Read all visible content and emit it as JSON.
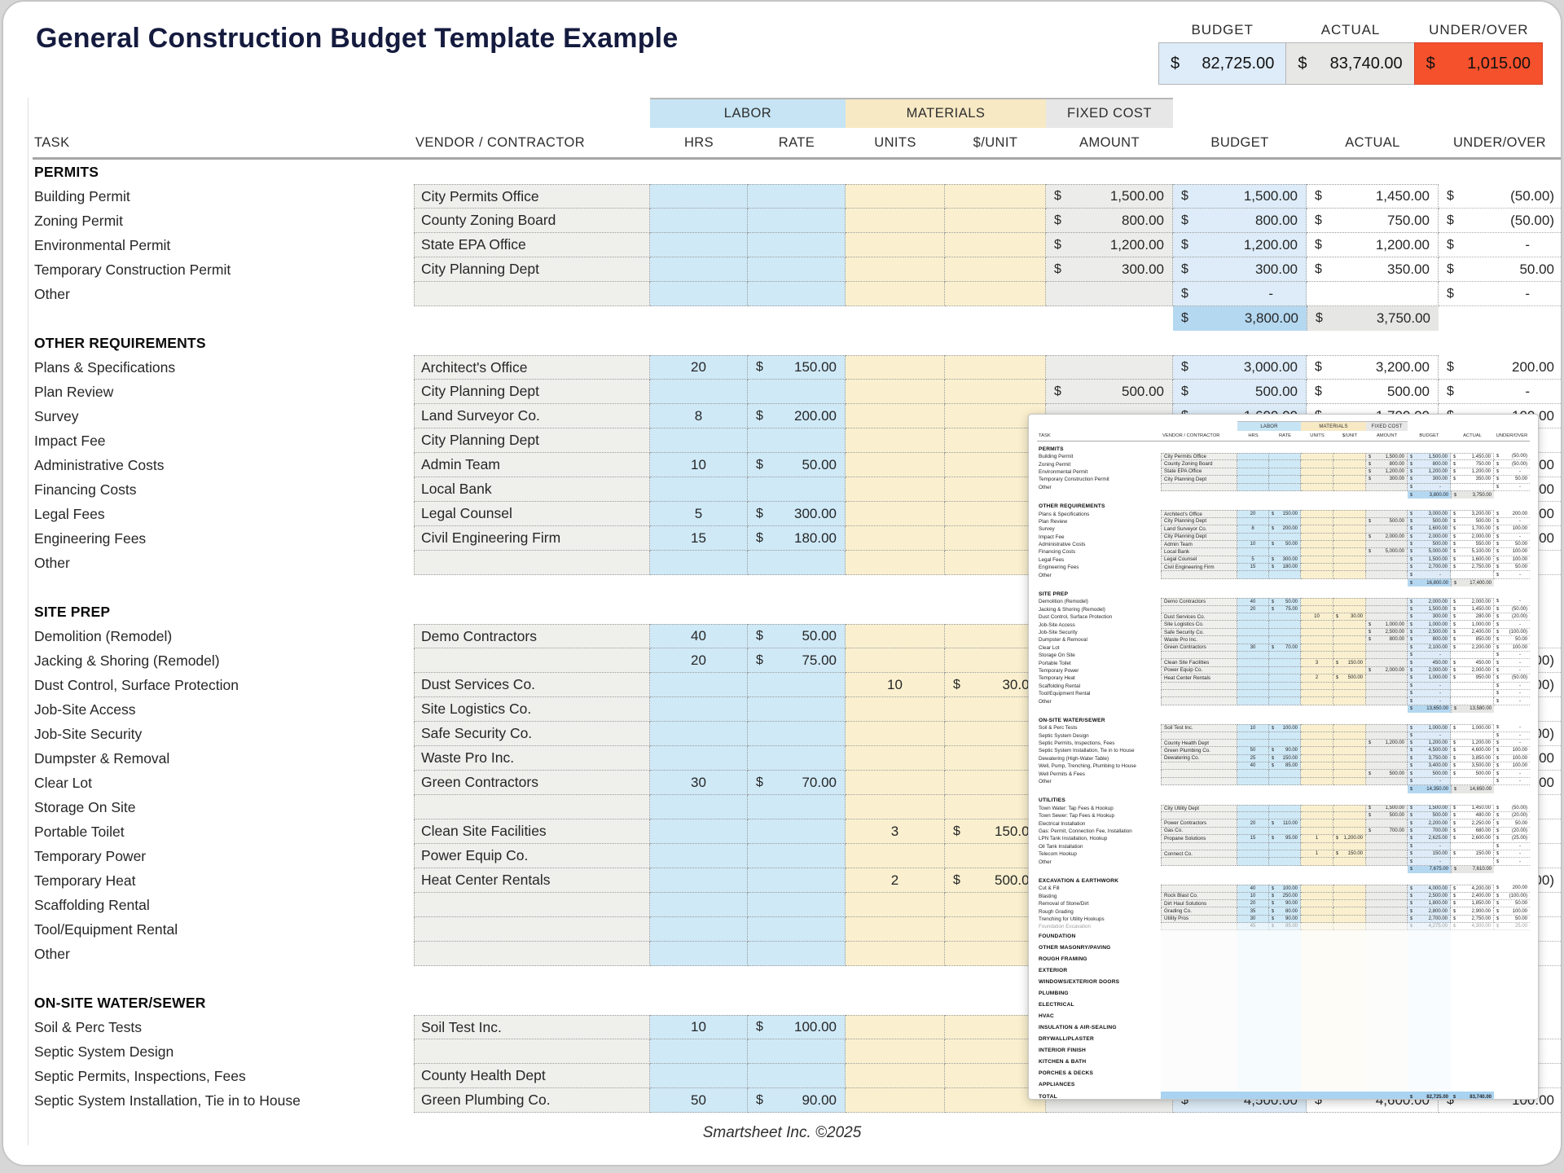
{
  "page": {
    "title": "General Construction Budget Template Example",
    "footer": "Smartsheet Inc. ©2025"
  },
  "summary": {
    "labels": [
      "BUDGET",
      "ACTUAL",
      "UNDER/OVER"
    ],
    "budget": "82,725.00",
    "actual": "83,740.00",
    "under_over": "1,015.00"
  },
  "colors": {
    "labor_band_blue": "#c6e4f4",
    "labor_cell_blue": "#cfe9f7",
    "materials_band_yellow": "#f7e9c4",
    "materials_cell_yellow": "#faf0cf",
    "fixed_cost_gray": "#e7e7e7",
    "budget_cell_blue": "#ddecf8",
    "subtotal_blue": "#b5d8f1",
    "under_over_orange": "#f4512c",
    "title_navy": "#141b3e"
  },
  "table": {
    "group_headers": {
      "labor": "LABOR",
      "materials": "MATERIALS",
      "fixed_cost": "FIXED COST"
    },
    "columns": [
      "TASK",
      "VENDOR / CONTRACTOR",
      "HRS",
      "RATE",
      "UNITS",
      "$/UNIT",
      "AMOUNT",
      "BUDGET",
      "ACTUAL",
      "UNDER/OVER"
    ],
    "sections": [
      {
        "name": "PERMITS",
        "rows": [
          [
            "Building Permit",
            "City Permits Office",
            "",
            "",
            "",
            "",
            "1,500.00",
            "1,500.00",
            "1,450.00",
            "(50.00)"
          ],
          [
            "Zoning Permit",
            "County Zoning Board",
            "",
            "",
            "",
            "",
            "800.00",
            "800.00",
            "750.00",
            "(50.00)"
          ],
          [
            "Environmental Permit",
            "State EPA Office",
            "",
            "",
            "",
            "",
            "1,200.00",
            "1,200.00",
            "1,200.00",
            "-"
          ],
          [
            "Temporary Construction Permit",
            "City Planning Dept",
            "",
            "",
            "",
            "",
            "300.00",
            "300.00",
            "350.00",
            "50.00"
          ],
          [
            "Other",
            "",
            "",
            "",
            "",
            "",
            "",
            "-",
            "",
            "-"
          ]
        ],
        "subtotal": [
          "3,800.00",
          "3,750.00"
        ]
      },
      {
        "name": "OTHER REQUIREMENTS",
        "rows": [
          [
            "Plans & Specifications",
            "Architect's Office",
            "20",
            "150.00",
            "",
            "",
            "",
            "3,000.00",
            "3,200.00",
            "200.00"
          ],
          [
            "Plan Review",
            "City Planning Dept",
            "",
            "",
            "",
            "",
            "500.00",
            "500.00",
            "500.00",
            "-"
          ],
          [
            "Survey",
            "Land Surveyor Co.",
            "8",
            "200.00",
            "",
            "",
            "",
            "1,600.00",
            "1,700.00",
            "100.00"
          ],
          [
            "Impact Fee",
            "City Planning Dept",
            "",
            "",
            "",
            "",
            "2,000.00",
            "2,000.00",
            "2,000.00",
            "-"
          ],
          [
            "Administrative Costs",
            "Admin Team",
            "10",
            "50.00",
            "",
            "",
            "",
            "500.00",
            "550.00",
            "50.00"
          ],
          [
            "Financing Costs",
            "Local Bank",
            "",
            "",
            "",
            "",
            "5,000.00",
            "5,000.00",
            "5,100.00",
            "100.00"
          ],
          [
            "Legal Fees",
            "Legal Counsel",
            "5",
            "300.00",
            "",
            "",
            "",
            "1,500.00",
            "1,600.00",
            "100.00"
          ],
          [
            "Engineering Fees",
            "Civil Engineering Firm",
            "15",
            "180.00",
            "",
            "",
            "",
            "2,700.00",
            "2,750.00",
            "50.00"
          ],
          [
            "Other",
            "",
            "",
            "",
            "",
            "",
            "",
            "-",
            "",
            "-"
          ]
        ],
        "subtotal": [
          "16,800.00",
          "17,400.00"
        ]
      },
      {
        "name": "SITE PREP",
        "rows": [
          [
            "Demolition (Remodel)",
            "Demo Contractors",
            "40",
            "50.00",
            "",
            "",
            "",
            "2,000.00",
            "2,000.00",
            "-"
          ],
          [
            "Jacking & Shoring (Remodel)",
            "",
            "20",
            "75.00",
            "",
            "",
            "",
            "1,500.00",
            "1,450.00",
            "(50.00)"
          ],
          [
            "Dust Control, Surface Protection",
            "Dust Services Co.",
            "",
            "",
            "10",
            "30.00",
            "",
            "300.00",
            "280.00",
            "(20.00)"
          ],
          [
            "Job-Site Access",
            "Site Logistics Co.",
            "",
            "",
            "",
            "",
            "1,000.00",
            "1,000.00",
            "1,000.00",
            "-"
          ],
          [
            "Job-Site Security",
            "Safe Security Co.",
            "",
            "",
            "",
            "",
            "2,500.00",
            "2,500.00",
            "2,400.00",
            "(100.00)"
          ],
          [
            "Dumpster & Removal",
            "Waste Pro Inc.",
            "",
            "",
            "",
            "",
            "800.00",
            "800.00",
            "850.00",
            "50.00"
          ],
          [
            "Clear Lot",
            "Green Contractors",
            "30",
            "70.00",
            "",
            "",
            "",
            "2,100.00",
            "2,200.00",
            "100.00"
          ],
          [
            "Storage On Site",
            "",
            "",
            "",
            "",
            "",
            "",
            "-",
            "",
            "-"
          ],
          [
            "Portable Toilet",
            "Clean Site Facilities",
            "",
            "",
            "3",
            "150.00",
            "",
            "450.00",
            "450.00",
            "-"
          ],
          [
            "Temporary Power",
            "Power Equip Co.",
            "",
            "",
            "",
            "",
            "2,000.00",
            "2,000.00",
            "2,000.00",
            "-"
          ],
          [
            "Temporary Heat",
            "Heat Center Rentals",
            "",
            "",
            "2",
            "500.00",
            "",
            "1,000.00",
            "950.00",
            "(50.00)"
          ],
          [
            "Scaffolding Rental",
            "",
            "",
            "",
            "",
            "",
            "",
            "-",
            "",
            "-"
          ],
          [
            "Tool/Equipment Rental",
            "",
            "",
            "",
            "",
            "",
            "",
            "-",
            "",
            "-"
          ],
          [
            "Other",
            "",
            "",
            "",
            "",
            "",
            "",
            "-",
            "",
            "-"
          ]
        ],
        "subtotal": [
          "13,650.00",
          "13,580.00"
        ]
      },
      {
        "name": "ON-SITE WATER/SEWER",
        "rows": [
          [
            "Soil & Perc Tests",
            "Soil Test Inc.",
            "10",
            "100.00",
            "",
            "",
            "",
            "1,000.00",
            "1,000.00",
            "-"
          ],
          [
            "Septic System Design",
            "",
            "",
            "",
            "",
            "",
            "",
            "-",
            "",
            "-"
          ],
          [
            "Septic Permits, Inspections, Fees",
            "County Health Dept",
            "",
            "",
            "",
            "",
            "1,200.00",
            "1,200.00",
            "1,200.00",
            "-"
          ],
          [
            "Septic System Installation, Tie in to House",
            "Green Plumbing Co.",
            "50",
            "90.00",
            "",
            "",
            "",
            "4,500.00",
            "4,600.00",
            "100.00"
          ],
          [
            "Dewatering (High-Water Table)",
            "Dewatering Co.",
            "25",
            "150.00",
            "",
            "",
            "",
            "3,750.00",
            "3,850.00",
            "100.00"
          ],
          [
            "Well, Pump, Trenching, Plumbing to House",
            "",
            "40",
            "85.00",
            "",
            "",
            "",
            "3,400.00",
            "3,500.00",
            "100.00"
          ],
          [
            "Well Permits & Fees",
            "",
            "",
            "",
            "",
            "",
            "500.00",
            "500.00",
            "500.00",
            "-"
          ],
          [
            "Other",
            "",
            "",
            "",
            "",
            "",
            "",
            "-",
            "",
            "-"
          ]
        ],
        "subtotal": [
          "14,350.00",
          "14,650.00"
        ]
      },
      {
        "name": "UTILITIES",
        "rows": [
          [
            "Town Water: Tap Fees & Hookup",
            "City Utility Dept",
            "",
            "",
            "",
            "",
            "1,500.00",
            "1,500.00",
            "1,450.00",
            "(50.00)"
          ],
          [
            "Town Sewer: Tap Fees & Hookup",
            "",
            "",
            "",
            "",
            "",
            "500.00",
            "500.00",
            "480.00",
            "(20.00)"
          ],
          [
            "Electrical Installation",
            "Power Contractors",
            "20",
            "110.00",
            "",
            "",
            "",
            "2,200.00",
            "2,250.00",
            "50.00"
          ],
          [
            "Gas: Permit, Connection Fee, Installation",
            "Gas Co.",
            "",
            "",
            "",
            "",
            "700.00",
            "700.00",
            "680.00",
            "(20.00)"
          ],
          [
            "LPN Tank Installation, Hookup",
            "Propane Solutions",
            "15",
            "95.00",
            "1",
            "1,200.00",
            "",
            "2,625.00",
            "2,600.00",
            "(25.00)"
          ],
          [
            "Oil Tank Installation",
            "",
            "",
            "",
            "",
            "",
            "",
            "-",
            "",
            "-"
          ],
          [
            "Telecom Hookup",
            "Connect Co.",
            "",
            "",
            "1",
            "150.00",
            "",
            "150.00",
            "150.00",
            "-"
          ],
          [
            "Other",
            "",
            "",
            "",
            "",
            "",
            "",
            "-",
            "",
            "-"
          ]
        ],
        "subtotal": [
          "7,675.00",
          "7,610.00"
        ]
      },
      {
        "name": "EXCAVATION & EARTHWORK",
        "rows": [
          [
            "Cut & Fill",
            "",
            "40",
            "100.00",
            "",
            "",
            "",
            "4,000.00",
            "4,200.00",
            "200.00"
          ],
          [
            "Blasting",
            "Rock Blast Co.",
            "10",
            "250.00",
            "",
            "",
            "",
            "2,500.00",
            "2,400.00",
            "(100.00)"
          ],
          [
            "Removal of Stone/Dirt",
            "Dirt Haul Solutions",
            "20",
            "90.00",
            "",
            "",
            "",
            "1,800.00",
            "1,850.00",
            "50.00"
          ],
          [
            "Rough Grading",
            "Grading Co.",
            "35",
            "80.00",
            "",
            "",
            "",
            "2,800.00",
            "2,900.00",
            "100.00"
          ],
          [
            "Trenching for Utility Hookups",
            "Utility Pros",
            "30",
            "90.00",
            "",
            "",
            "",
            "2,700.00",
            "2,750.00",
            "50.00"
          ],
          [
            "Foundation Excavation",
            "",
            "45",
            "95.00",
            "",
            "",
            "",
            "4,275.00",
            "4,300.00",
            "25.00"
          ]
        ],
        "subtotal": null,
        "fade_rows": [
          5
        ]
      }
    ],
    "faded_section_labels": [
      "FOUNDATION",
      "OTHER MASONRY/PAVING",
      "ROUGH FRAMING",
      "EXTERIOR",
      "WINDOWS/EXTERIOR DOORS",
      "PLUMBING",
      "ELECTRICAL",
      "HVAC",
      "INSULATION & AIR-SEALING",
      "DRYWALL/PLASTER",
      "INTERIOR FINISH",
      "KITCHEN & BATH",
      "PORCHES & DECKS",
      "APPLIANCES"
    ],
    "total": {
      "label": "TOTAL",
      "budget": "82,725.00",
      "actual": "83,740.00"
    }
  }
}
